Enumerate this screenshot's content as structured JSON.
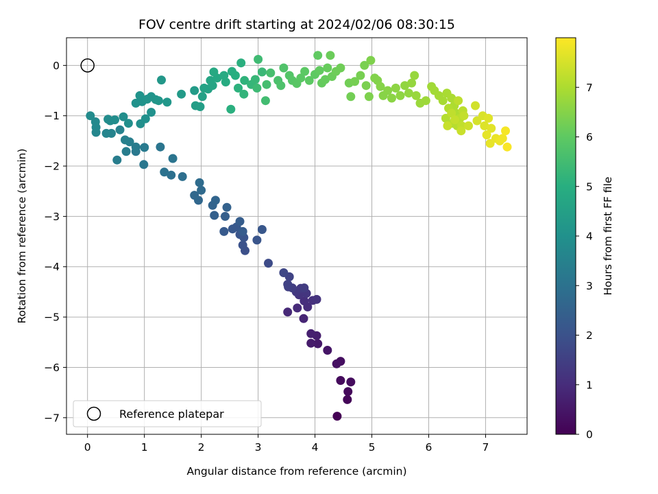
{
  "chart_data": {
    "type": "scatter",
    "title": "FOV centre drift starting at 2024/02/06 08:30:15",
    "xlabel": "Angular distance from reference (arcmin)",
    "ylabel": "Rotation from reference (arcmin)",
    "xlim": [
      -0.37,
      7.73
    ],
    "ylim": [
      -7.33,
      0.55
    ],
    "xticks": [
      0,
      1,
      2,
      3,
      4,
      5,
      6,
      7
    ],
    "yticks": [
      0,
      -1,
      -2,
      -3,
      -4,
      -5,
      -6,
      -7
    ],
    "grid": true,
    "legend": {
      "placement": "lower-left",
      "entries": [
        "Reference platepar"
      ]
    },
    "reference_point": {
      "x": 0,
      "y": 0,
      "label": "Reference platepar"
    },
    "colorbar": {
      "label": "Hours from first FF file",
      "range": [
        0,
        8.0
      ],
      "ticks": [
        0,
        1,
        2,
        3,
        4,
        5,
        6,
        7
      ],
      "colormap": "viridis"
    },
    "series": [
      {
        "values": [
          [
            4.39,
            -6.97,
            0.0
          ],
          [
            4.57,
            -6.64,
            0.1
          ],
          [
            4.58,
            -6.48,
            0.15
          ],
          [
            4.45,
            -6.26,
            0.2
          ],
          [
            4.63,
            -6.29,
            0.25
          ],
          [
            4.45,
            -5.88,
            0.3
          ],
          [
            4.38,
            -5.93,
            0.35
          ],
          [
            4.22,
            -5.66,
            0.45
          ],
          [
            4.05,
            -5.53,
            0.55
          ],
          [
            3.93,
            -5.52,
            0.6
          ],
          [
            4.03,
            -5.37,
            0.65
          ],
          [
            3.93,
            -5.33,
            0.7
          ],
          [
            3.8,
            -5.03,
            0.85
          ],
          [
            3.52,
            -4.9,
            0.9
          ],
          [
            3.69,
            -4.82,
            0.95
          ],
          [
            3.87,
            -4.8,
            1.0
          ],
          [
            3.81,
            -4.68,
            1.05
          ],
          [
            3.96,
            -4.67,
            1.1
          ],
          [
            4.03,
            -4.65,
            1.15
          ],
          [
            3.72,
            -4.56,
            1.2
          ],
          [
            3.85,
            -4.53,
            1.25
          ],
          [
            3.67,
            -4.5,
            1.3
          ],
          [
            3.75,
            -4.43,
            1.35
          ],
          [
            3.81,
            -4.42,
            1.4
          ],
          [
            3.6,
            -4.42,
            1.45
          ],
          [
            3.53,
            -4.4,
            1.5
          ],
          [
            3.52,
            -4.35,
            1.55
          ],
          [
            3.55,
            -4.2,
            1.6
          ],
          [
            3.45,
            -4.12,
            1.7
          ],
          [
            3.18,
            -3.93,
            1.8
          ],
          [
            2.77,
            -3.68,
            1.95
          ],
          [
            2.73,
            -3.57,
            2.0
          ],
          [
            2.75,
            -3.42,
            2.05
          ],
          [
            2.68,
            -3.36,
            2.1
          ],
          [
            2.98,
            -3.47,
            2.1
          ],
          [
            3.07,
            -3.26,
            2.15
          ],
          [
            2.55,
            -3.25,
            2.2
          ],
          [
            2.62,
            -3.21,
            2.2
          ],
          [
            2.4,
            -3.3,
            2.25
          ],
          [
            2.73,
            -3.3,
            2.3
          ],
          [
            2.68,
            -3.1,
            2.35
          ],
          [
            2.42,
            -3.0,
            2.4
          ],
          [
            2.23,
            -2.98,
            2.45
          ],
          [
            2.45,
            -2.82,
            2.5
          ],
          [
            2.2,
            -2.78,
            2.55
          ],
          [
            2.25,
            -2.68,
            2.6
          ],
          [
            1.95,
            -2.68,
            2.65
          ],
          [
            1.88,
            -2.58,
            2.7
          ],
          [
            2.0,
            -2.48,
            2.75
          ],
          [
            1.97,
            -2.33,
            2.8
          ],
          [
            1.67,
            -2.21,
            2.9
          ],
          [
            1.47,
            -2.18,
            2.95
          ],
          [
            1.35,
            -2.12,
            3.0
          ],
          [
            1.5,
            -1.85,
            3.05
          ],
          [
            1.28,
            -1.62,
            3.1
          ],
          [
            0.99,
            -1.97,
            3.15
          ],
          [
            0.85,
            -1.71,
            3.2
          ],
          [
            1.0,
            -1.63,
            3.25
          ],
          [
            0.85,
            -1.62,
            3.3
          ],
          [
            0.68,
            -1.71,
            3.35
          ],
          [
            0.52,
            -1.88,
            3.35
          ],
          [
            0.74,
            -1.52,
            3.4
          ],
          [
            0.66,
            -1.48,
            3.45
          ],
          [
            0.57,
            -1.28,
            3.5
          ],
          [
            0.42,
            -1.35,
            3.55
          ],
          [
            0.33,
            -1.35,
            3.6
          ],
          [
            0.15,
            -1.33,
            3.65
          ],
          [
            0.15,
            -1.23,
            3.7
          ],
          [
            0.14,
            -1.12,
            3.75
          ],
          [
            0.05,
            -1.0,
            3.8
          ],
          [
            0.4,
            -1.1,
            3.82
          ],
          [
            0.36,
            -1.07,
            3.85
          ],
          [
            0.48,
            -1.08,
            3.87
          ],
          [
            0.63,
            -1.02,
            3.9
          ],
          [
            0.72,
            -1.15,
            3.92
          ],
          [
            0.93,
            -1.16,
            3.95
          ],
          [
            1.02,
            -1.06,
            3.97
          ],
          [
            1.12,
            -0.93,
            4.0
          ],
          [
            0.85,
            -0.75,
            4.02
          ],
          [
            0.96,
            -0.72,
            4.05
          ],
          [
            0.92,
            -0.6,
            4.07
          ],
          [
            1.05,
            -0.67,
            4.1
          ],
          [
            1.12,
            -0.62,
            4.12
          ],
          [
            1.2,
            -0.68,
            4.15
          ],
          [
            1.25,
            -0.7,
            4.17
          ],
          [
            1.4,
            -0.73,
            4.2
          ],
          [
            1.3,
            -0.29,
            4.22
          ],
          [
            1.65,
            -0.57,
            4.3
          ],
          [
            1.88,
            -0.5,
            4.35
          ],
          [
            1.9,
            -0.8,
            4.4
          ],
          [
            1.98,
            -0.82,
            4.45
          ],
          [
            2.02,
            -0.62,
            4.5
          ],
          [
            2.12,
            -0.47,
            4.55
          ],
          [
            2.05,
            -0.45,
            4.6
          ],
          [
            2.2,
            -0.4,
            4.65
          ],
          [
            2.16,
            -0.3,
            4.7
          ],
          [
            2.28,
            -0.25,
            4.75
          ],
          [
            2.22,
            -0.13,
            4.8
          ],
          [
            2.4,
            -0.2,
            4.85
          ],
          [
            2.43,
            -0.33,
            4.9
          ],
          [
            2.54,
            -0.12,
            4.95
          ],
          [
            2.6,
            -0.2,
            5.0
          ],
          [
            2.7,
            0.05,
            5.05
          ],
          [
            2.52,
            -0.87,
            5.05
          ],
          [
            2.65,
            -0.45,
            5.1
          ],
          [
            2.76,
            -0.3,
            5.15
          ],
          [
            2.75,
            -0.57,
            5.2
          ],
          [
            2.88,
            -0.38,
            5.25
          ],
          [
            2.95,
            -0.28,
            5.3
          ],
          [
            3.07,
            -0.13,
            5.35
          ],
          [
            2.98,
            -0.45,
            5.4
          ],
          [
            3.0,
            0.12,
            5.45
          ],
          [
            3.13,
            -0.7,
            5.5
          ],
          [
            3.15,
            -0.38,
            5.55
          ],
          [
            3.22,
            -0.15,
            5.6
          ],
          [
            3.35,
            -0.3,
            5.65
          ],
          [
            3.4,
            -0.4,
            5.7
          ],
          [
            3.45,
            -0.05,
            5.75
          ],
          [
            3.55,
            -0.2,
            5.8
          ],
          [
            3.6,
            -0.3,
            5.85
          ],
          [
            3.68,
            -0.36,
            5.9
          ],
          [
            3.75,
            -0.25,
            5.92
          ],
          [
            3.82,
            -0.12,
            5.95
          ],
          [
            3.9,
            -0.3,
            5.97
          ],
          [
            4.0,
            -0.18,
            6.0
          ],
          [
            4.05,
            0.2,
            6.02
          ],
          [
            4.08,
            -0.1,
            6.05
          ],
          [
            4.12,
            -0.35,
            6.07
          ],
          [
            4.18,
            -0.28,
            6.1
          ],
          [
            4.22,
            -0.05,
            6.12
          ],
          [
            4.3,
            -0.22,
            6.15
          ],
          [
            4.27,
            0.2,
            6.17
          ],
          [
            4.37,
            -0.12,
            6.2
          ],
          [
            4.45,
            -0.05,
            6.22
          ],
          [
            4.6,
            -0.35,
            6.25
          ],
          [
            4.63,
            -0.62,
            6.27
          ],
          [
            4.7,
            -0.32,
            6.3
          ],
          [
            4.8,
            -0.2,
            6.32
          ],
          [
            4.87,
            0.0,
            6.35
          ],
          [
            4.9,
            -0.4,
            6.37
          ],
          [
            4.95,
            -0.62,
            6.4
          ],
          [
            4.98,
            0.1,
            6.42
          ],
          [
            5.05,
            -0.25,
            6.45
          ],
          [
            5.1,
            -0.3,
            6.47
          ],
          [
            5.15,
            -0.42,
            6.5
          ],
          [
            5.2,
            -0.6,
            6.52
          ],
          [
            5.28,
            -0.5,
            6.55
          ],
          [
            5.35,
            -0.65,
            6.57
          ],
          [
            5.42,
            -0.45,
            6.6
          ],
          [
            5.5,
            -0.6,
            6.62
          ],
          [
            5.58,
            -0.4,
            6.65
          ],
          [
            5.65,
            -0.55,
            6.67
          ],
          [
            5.7,
            -0.35,
            6.7
          ],
          [
            5.75,
            -0.2,
            6.72
          ],
          [
            5.78,
            -0.6,
            6.75
          ],
          [
            5.85,
            -0.75,
            6.77
          ],
          [
            5.95,
            -0.7,
            6.8
          ],
          [
            6.05,
            -0.42,
            6.85
          ],
          [
            6.1,
            -0.5,
            6.87
          ],
          [
            6.18,
            -0.6,
            6.9
          ],
          [
            6.25,
            -0.7,
            6.92
          ],
          [
            6.32,
            -0.55,
            6.95
          ],
          [
            6.4,
            -0.65,
            6.97
          ],
          [
            6.45,
            -0.8,
            7.0
          ],
          [
            6.48,
            -0.95,
            7.02
          ],
          [
            6.35,
            -0.85,
            7.05
          ],
          [
            6.3,
            -1.05,
            7.07
          ],
          [
            6.42,
            -1.15,
            7.1
          ],
          [
            6.5,
            -1.2,
            7.12
          ],
          [
            6.55,
            -1.05,
            7.15
          ],
          [
            6.6,
            -0.9,
            7.17
          ],
          [
            6.52,
            -0.7,
            7.2
          ],
          [
            6.4,
            -0.95,
            7.22
          ],
          [
            6.58,
            -1.2,
            7.25
          ],
          [
            6.62,
            -1.0,
            7.27
          ],
          [
            6.46,
            -1.08,
            7.3
          ],
          [
            6.33,
            -1.2,
            7.32
          ],
          [
            6.57,
            -1.3,
            7.35
          ],
          [
            6.7,
            -1.2,
            7.4
          ],
          [
            6.82,
            -0.8,
            7.45
          ],
          [
            6.85,
            -1.1,
            7.5
          ],
          [
            6.95,
            -1.0,
            7.55
          ],
          [
            6.98,
            -1.2,
            7.6
          ],
          [
            7.05,
            -1.05,
            7.62
          ],
          [
            7.1,
            -1.25,
            7.65
          ],
          [
            7.02,
            -1.38,
            7.7
          ],
          [
            7.08,
            -1.55,
            7.72
          ],
          [
            7.18,
            -1.45,
            7.75
          ],
          [
            7.25,
            -1.5,
            7.8
          ],
          [
            7.3,
            -1.45,
            7.85
          ],
          [
            7.35,
            -1.3,
            7.9
          ],
          [
            7.38,
            -1.62,
            7.95
          ]
        ]
      }
    ]
  }
}
